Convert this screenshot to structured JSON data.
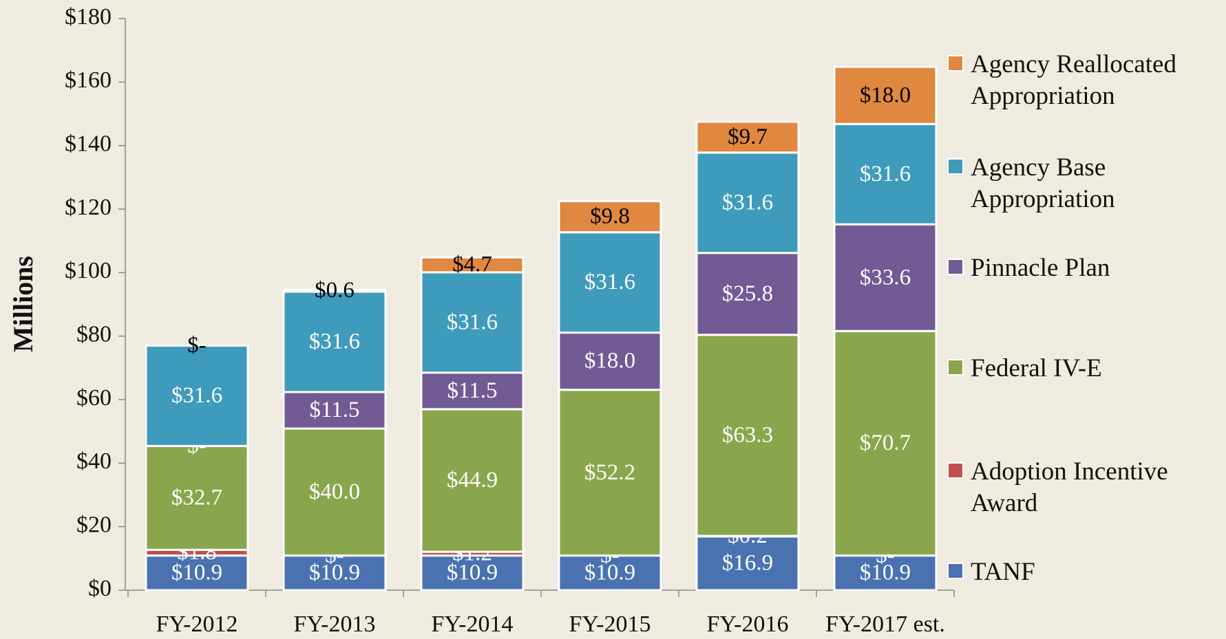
{
  "chart_data": {
    "type": "stacked_bar",
    "y_label": "Millions",
    "categories": [
      "FY-2012",
      "FY-2013",
      "FY-2014",
      "FY-2015",
      "FY-2016",
      "FY-2017 est."
    ],
    "ylim": [
      0,
      180
    ],
    "yticks": [
      {
        "value": 0,
        "label": "$0"
      },
      {
        "value": 20,
        "label": "$20"
      },
      {
        "value": 40,
        "label": "$40"
      },
      {
        "value": 60,
        "label": "$60"
      },
      {
        "value": 80,
        "label": "$80"
      },
      {
        "value": 100,
        "label": "$100"
      },
      {
        "value": 120,
        "label": "$120"
      },
      {
        "value": 140,
        "label": "$140"
      },
      {
        "value": 160,
        "label": "$160"
      },
      {
        "value": 180,
        "label": "$180"
      }
    ],
    "series": [
      {
        "name": "TANF",
        "color": "#4a72b0",
        "label_color": "#ffffff",
        "values": [
          10.9,
          10.9,
          10.9,
          10.9,
          16.9,
          10.9
        ],
        "value_labels": [
          "$10.9",
          "$10.9",
          "$10.9",
          "$10.9",
          "$16.9",
          "$10.9"
        ]
      },
      {
        "name": "Adoption Incentive Award",
        "color": "#c0504d",
        "label_color": "#ffffff",
        "values": [
          1.8,
          0,
          1.2,
          0,
          0.2,
          0
        ],
        "value_labels": [
          "$1.8",
          "$-",
          "$1.2",
          "$-",
          "$0.2",
          "$-"
        ]
      },
      {
        "name": "Federal IV-E",
        "color": "#8aa64c",
        "label_color": "#ffffff",
        "values": [
          32.7,
          40.0,
          44.9,
          52.2,
          63.3,
          70.7
        ],
        "value_labels": [
          "$32.7",
          "$40.0",
          "$44.9",
          "$52.2",
          "$63.3",
          "$70.7"
        ]
      },
      {
        "name": "Pinnacle Plan",
        "color": "#725a94",
        "label_color": "#ffffff",
        "values": [
          0,
          11.5,
          11.5,
          18.0,
          25.8,
          33.6
        ],
        "value_labels": [
          "$-",
          "$11.5",
          "$11.5",
          "$18.0",
          "$25.8",
          "$33.6"
        ]
      },
      {
        "name": "Agency Base Appropriation",
        "color": "#3f9bbb",
        "label_color": "#ffffff",
        "values": [
          31.6,
          31.6,
          31.6,
          31.6,
          31.6,
          31.6
        ],
        "value_labels": [
          "$31.6",
          "$31.6",
          "$31.6",
          "$31.6",
          "$31.6",
          "$31.6"
        ]
      },
      {
        "name": "Agency Reallocated Appropriation",
        "color": "#e0883f",
        "label_color": "#000000",
        "values": [
          0,
          0.6,
          4.7,
          9.8,
          9.7,
          18.0
        ],
        "value_labels": [
          "$-",
          "$0.6",
          "$4.7",
          "$9.8",
          "$9.7",
          "$18.0"
        ]
      }
    ]
  }
}
